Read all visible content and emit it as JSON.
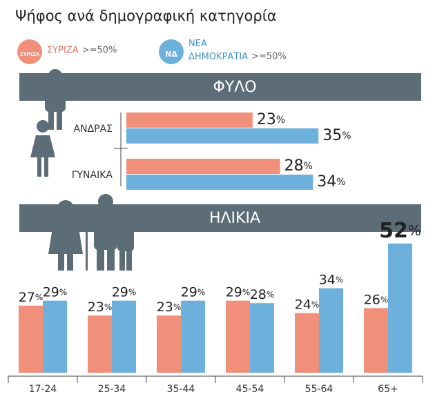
{
  "title": "Ψήφος ανά δημογραφική κατηγορία",
  "legend": [
    {
      "name": "ΣΥΡΙΖΑ",
      "note": ">=50%",
      "logo": "ΣΥΡΙΖΑ",
      "color": "#f0907a",
      "text_color": "#e8735a"
    },
    {
      "name": "ΝΕΑ ΔΗΜΟΚΡΑΤΙΑ",
      "note": ">=50%",
      "logo": "ΝΔ",
      "color": "#6eb0dc",
      "text_color": "#3f93cc"
    }
  ],
  "chart_data": [
    {
      "type": "bar",
      "orientation": "horizontal",
      "title": "ΦΥΛΟ",
      "categories": [
        "ΑΝΔΡΑΣ",
        "ΓΥΝΑΙΚΑ"
      ],
      "series": [
        {
          "color": "#f0907a",
          "values": [
            23,
            28
          ],
          "value_labels": [
            "23%",
            "28%"
          ]
        },
        {
          "color": "#6eb0dc",
          "values": [
            35,
            34
          ],
          "value_labels": [
            "35%",
            "34%"
          ]
        }
      ]
    },
    {
      "type": "bar",
      "orientation": "vertical",
      "title": "ΗΛΙΚΙΑ",
      "categories": [
        "17-24",
        "25-34",
        "35-44",
        "45-54",
        "55-64",
        "65+"
      ],
      "series": [
        {
          "color": "#f0907a",
          "values": [
            27,
            23,
            23,
            29,
            24,
            26
          ],
          "value_labels": [
            "27%",
            "23%",
            "23%",
            "29%",
            "24%",
            "26%"
          ]
        },
        {
          "color": "#6eb0dc",
          "values": [
            29,
            29,
            29,
            28,
            34,
            52
          ],
          "value_labels": [
            "29%",
            "29%",
            "29%",
            "28%",
            "34%",
            "52%"
          ]
        }
      ]
    }
  ]
}
